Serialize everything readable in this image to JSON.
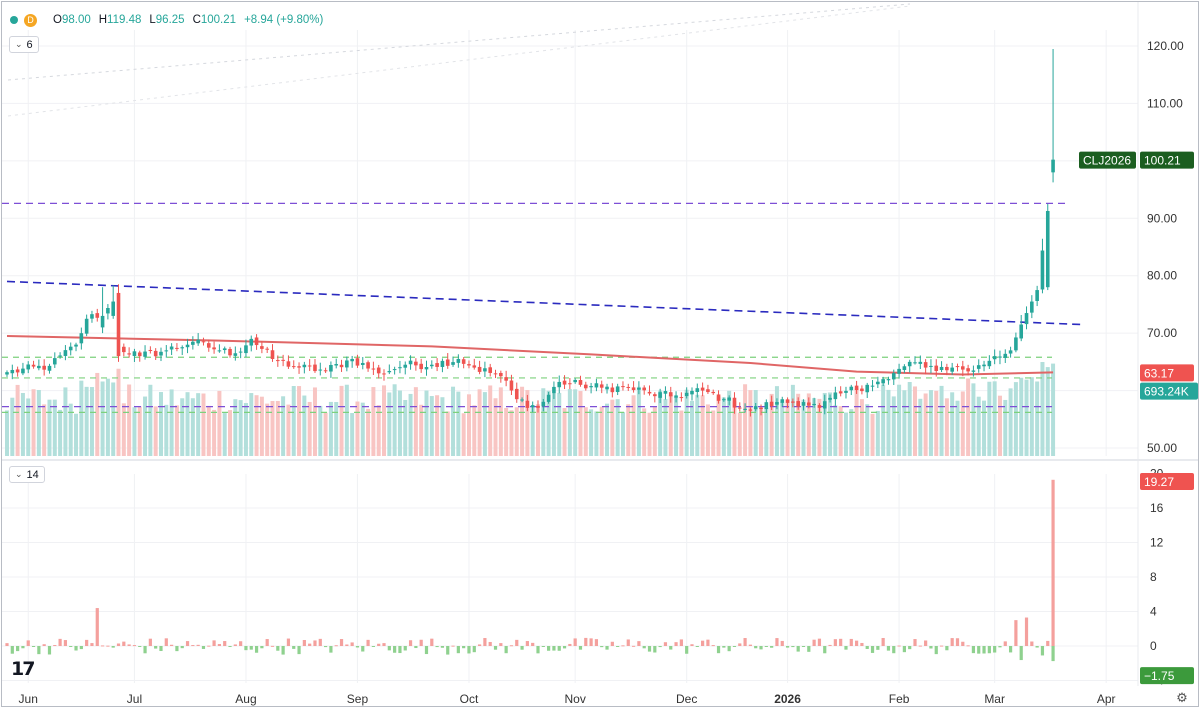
{
  "legend": {
    "dot_d": "D",
    "open_label": "O",
    "open": "98.00",
    "high_label": "H",
    "high": "119.48",
    "low_label": "L",
    "low": "96.25",
    "close_label": "C",
    "close": "100.21",
    "change": "+8.94 (+9.80%)"
  },
  "price_pane": {
    "collapse_count": "6"
  },
  "indicator_pane": {
    "collapse_count": "14"
  },
  "colors": {
    "up": "#26a69a",
    "down": "#ef5350",
    "ma": "#e06666",
    "blue_dash": "#2b2bbf",
    "purple_dash": "#7d4fd6",
    "green_dash": "#7cd17c",
    "symbol_badge": "#1b5e20",
    "osc_up": "#ef5350",
    "osc_down": "#4caf50"
  },
  "chart_data": [
    {
      "type": "candlestick",
      "symbol": "CLJ2026",
      "price_label": "100.21",
      "ma_label": "63.17",
      "volume_label": "693.24K",
      "y_ticks": [
        "120.00",
        "110.00",
        "100.00",
        "90.00",
        "80.00",
        "70.00",
        "60.00",
        "50.00"
      ],
      "ylim": [
        49,
        124
      ],
      "x_ticks": [
        "Jun",
        "Jul",
        "Aug",
        "Sep",
        "Oct",
        "Nov",
        "Dec",
        "2026",
        "Feb",
        "Mar",
        "Apr"
      ],
      "candle_count": 198,
      "anchors": [
        {
          "i": 0,
          "c": 63.2
        },
        {
          "i": 8,
          "c": 64.3
        },
        {
          "i": 13,
          "c": 68.0
        },
        {
          "i": 15,
          "c": 72.5
        },
        {
          "i": 18,
          "c": 73.5
        },
        {
          "i": 20,
          "c": 75.0
        },
        {
          "i": 21,
          "c": 67.5
        },
        {
          "i": 25,
          "c": 66.0
        },
        {
          "i": 30,
          "c": 67.0
        },
        {
          "i": 35,
          "c": 68.5
        },
        {
          "i": 40,
          "c": 67.0
        },
        {
          "i": 43,
          "c": 66.5
        },
        {
          "i": 46,
          "c": 69.0
        },
        {
          "i": 50,
          "c": 65.5
        },
        {
          "i": 55,
          "c": 64.0
        },
        {
          "i": 60,
          "c": 63.5
        },
        {
          "i": 65,
          "c": 65.5
        },
        {
          "i": 70,
          "c": 63.0
        },
        {
          "i": 75,
          "c": 64.5
        },
        {
          "i": 80,
          "c": 64.5
        },
        {
          "i": 85,
          "c": 65.5
        },
        {
          "i": 88,
          "c": 64.0
        },
        {
          "i": 93,
          "c": 62.5
        },
        {
          "i": 96,
          "c": 58.5
        },
        {
          "i": 100,
          "c": 57.0
        },
        {
          "i": 104,
          "c": 61.5
        },
        {
          "i": 108,
          "c": 61.0
        },
        {
          "i": 112,
          "c": 60.5
        },
        {
          "i": 117,
          "c": 60.5
        },
        {
          "i": 121,
          "c": 59.5
        },
        {
          "i": 125,
          "c": 59.0
        },
        {
          "i": 131,
          "c": 60.0
        },
        {
          "i": 135,
          "c": 58.5
        },
        {
          "i": 140,
          "c": 56.5
        },
        {
          "i": 145,
          "c": 58.0
        },
        {
          "i": 150,
          "c": 58.0
        },
        {
          "i": 153,
          "c": 57.0
        },
        {
          "i": 157,
          "c": 59.5
        },
        {
          "i": 162,
          "c": 61.0
        },
        {
          "i": 166,
          "c": 62.0
        },
        {
          "i": 170,
          "c": 65.0
        },
        {
          "i": 173,
          "c": 64.0
        },
        {
          "i": 178,
          "c": 64.0
        },
        {
          "i": 182,
          "c": 63.5
        },
        {
          "i": 186,
          "c": 66.0
        },
        {
          "i": 189,
          "c": 67.0
        },
        {
          "i": 191,
          "c": 71.5
        },
        {
          "i": 194,
          "c": 77.5
        },
        {
          "i": 196,
          "c": 91.27
        },
        {
          "i": 197,
          "c": 100.21
        }
      ],
      "last_bar": {
        "open": 98.0,
        "high": 119.48,
        "low": 96.25,
        "close": 100.21
      },
      "moving_average": [
        {
          "i": 0,
          "v": 69.5
        },
        {
          "i": 40,
          "v": 68.7
        },
        {
          "i": 80,
          "v": 67.7
        },
        {
          "i": 110,
          "v": 66.3
        },
        {
          "i": 140,
          "v": 64.8
        },
        {
          "i": 160,
          "v": 63.3
        },
        {
          "i": 180,
          "v": 62.8
        },
        {
          "i": 197,
          "v": 63.17
        }
      ],
      "levels": {
        "resistance_purple": 92.6,
        "green_1": 65.8,
        "green_2": 62.2,
        "purple_low": 57.2,
        "green_low": 56.2,
        "trendline_start": {
          "i": 0,
          "v": 79.0
        },
        "trendline_end": {
          "i": 208,
          "v": 71.5
        }
      },
      "volume_max_k": 900
    },
    {
      "type": "bar",
      "name": "oscillator",
      "y_ticks": [
        "20",
        "16",
        "12",
        "8",
        "4",
        "0",
        "−4"
      ],
      "ylim": [
        -4.5,
        20
      ],
      "last_positive": 19.27,
      "last_negative": -1.75,
      "label_positive": "19.27",
      "label_negative": "−1.75",
      "spikes": [
        {
          "i": 17,
          "v": 4.4
        },
        {
          "i": 190,
          "v": 3.0
        },
        {
          "i": 192,
          "v": 3.3
        },
        {
          "i": 197,
          "v": 19.27
        }
      ]
    }
  ]
}
